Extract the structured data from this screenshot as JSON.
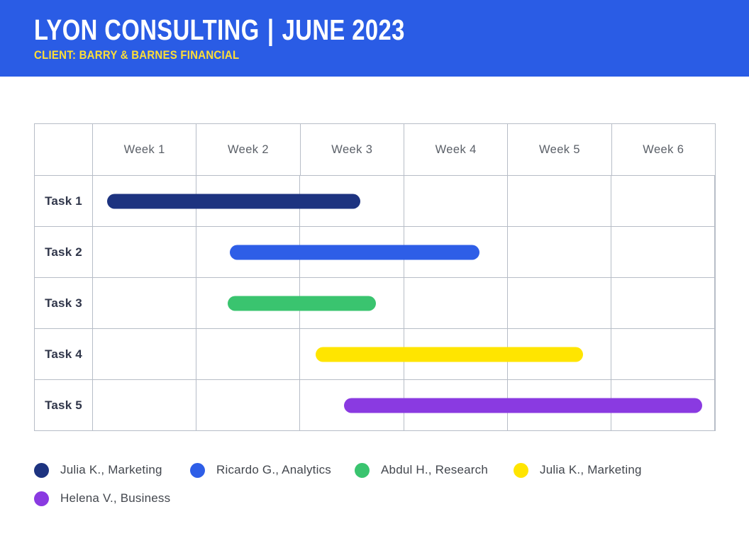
{
  "header": {
    "title_left": "LYON CONSULTING",
    "title_separator": "|",
    "title_right": "JUNE 2023",
    "subtitle": "CLIENT: BARRY & BARNES FINANCIAL",
    "background_color": "#2a5ce5",
    "title_color": "#ffffff",
    "subtitle_color": "#ffdf35"
  },
  "chart_data": {
    "type": "bar",
    "subtype": "gantt-timeline",
    "title": "LYON CONSULTING | JUNE 2023 — Client: Barry & Barnes Financial",
    "columns": [
      "Week 1",
      "Week 2",
      "Week 3",
      "Week 4",
      "Week 5",
      "Week 6"
    ],
    "x_unit": "weeks",
    "x_range": [
      0,
      6
    ],
    "grid": true,
    "legend_position": "bottom",
    "tasks": [
      {
        "label": "Task 1",
        "start_week": 0.14,
        "end_week": 2.58,
        "color": "#1d3380",
        "assignee": "Julia K., Marketing"
      },
      {
        "label": "Task 2",
        "start_week": 1.32,
        "end_week": 3.73,
        "color": "#2e5ee7",
        "assignee": "Ricardo G., Analytics"
      },
      {
        "label": "Task 3",
        "start_week": 1.3,
        "end_week": 2.73,
        "color": "#3ac46f",
        "assignee": "Abdul H., Research"
      },
      {
        "label": "Task 4",
        "start_week": 2.15,
        "end_week": 4.73,
        "color": "#ffe500",
        "assignee": "Julia K., Marketing"
      },
      {
        "label": "Task 5",
        "start_week": 2.42,
        "end_week": 5.88,
        "color": "#8a3ae1",
        "assignee": "Helena V., Business"
      }
    ],
    "legend": [
      {
        "label": "Julia K., Marketing",
        "color": "#1d3380"
      },
      {
        "label": "Ricardo G., Analytics",
        "color": "#2e5ee7"
      },
      {
        "label": "Abdul H., Research",
        "color": "#3ac46f"
      },
      {
        "label": "Julia K., Marketing",
        "color": "#ffe500"
      },
      {
        "label": "Helena V., Business",
        "color": "#8a3ae1"
      }
    ]
  }
}
